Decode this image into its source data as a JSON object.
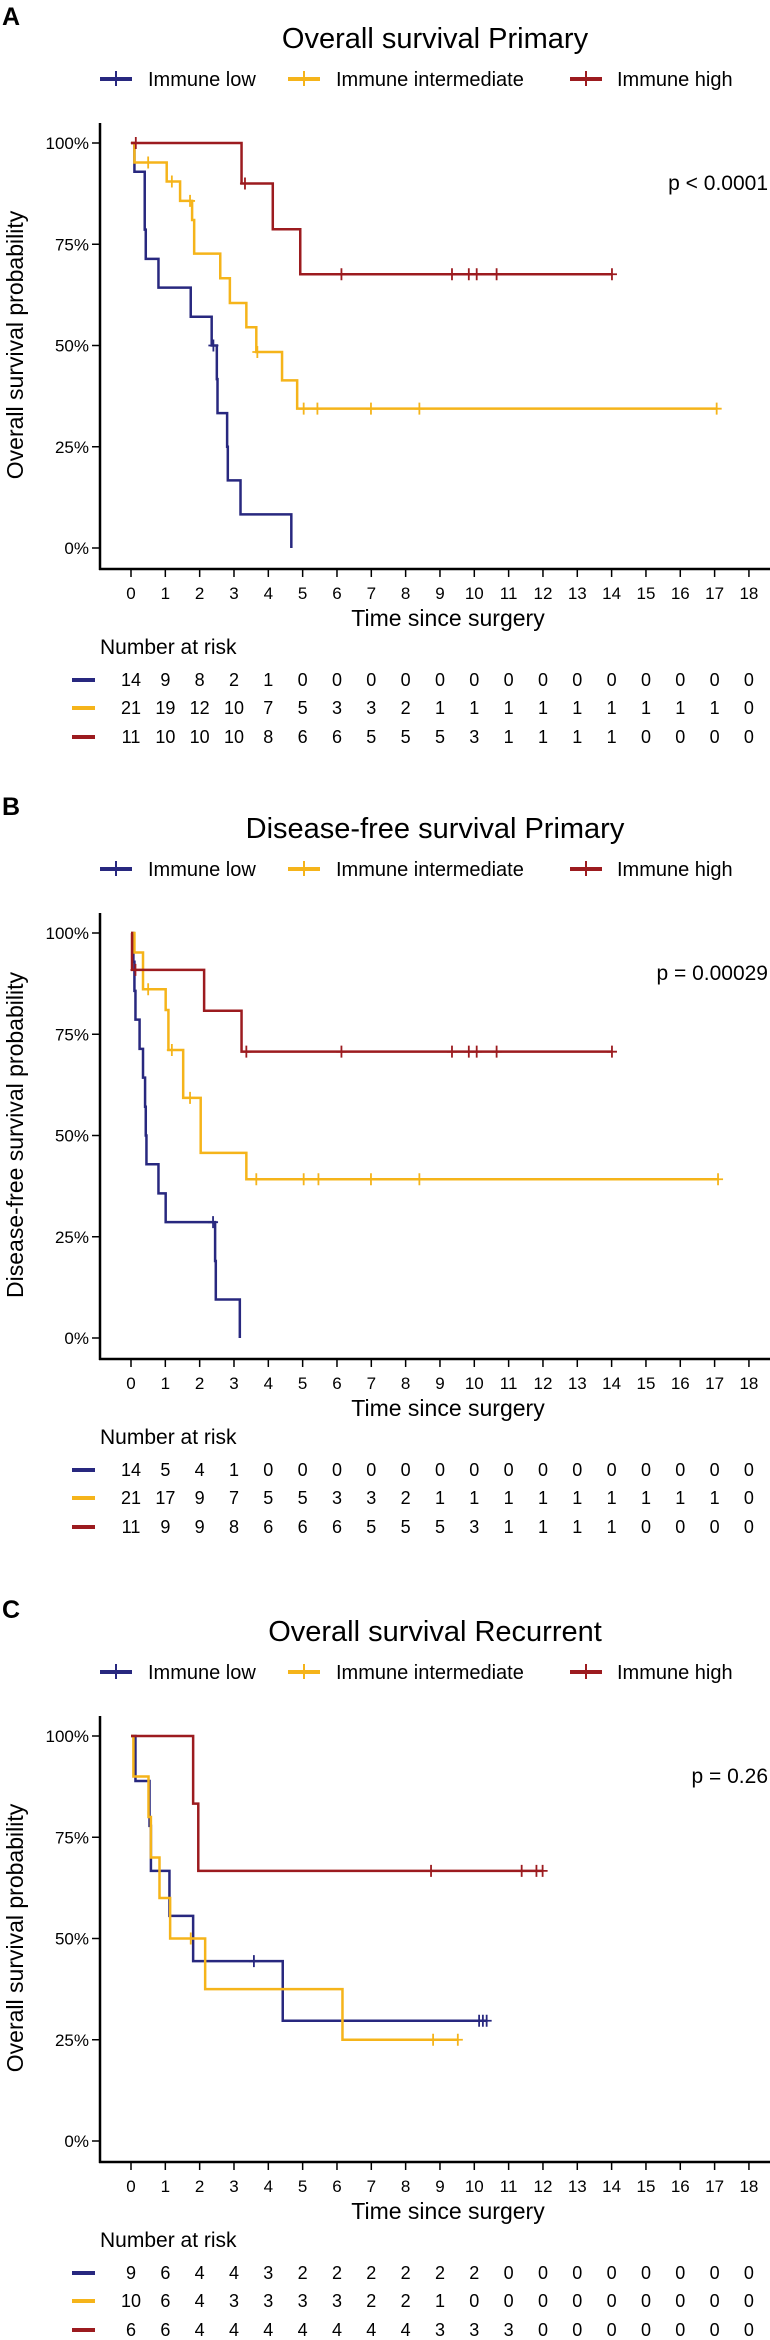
{
  "chart_data": [
    {
      "type": "line",
      "panel_label": "A",
      "title": "Overall survival Primary",
      "xlabel": "Time since surgery",
      "ylabel": "Overall survival probability",
      "xlim": [
        0,
        18
      ],
      "ylim": [
        0,
        1
      ],
      "xticks": [
        "0",
        "1",
        "2",
        "3",
        "4",
        "5",
        "6",
        "7",
        "8",
        "9",
        "10",
        "11",
        "12",
        "13",
        "14",
        "15",
        "16",
        "17",
        "18"
      ],
      "yticks": [
        {
          "value": 0,
          "label": "0%"
        },
        {
          "value": 0.25,
          "label": "25%"
        },
        {
          "value": 0.5,
          "label": "50%"
        },
        {
          "value": 0.75,
          "label": "75%"
        },
        {
          "value": 1,
          "label": "100%"
        }
      ],
      "legend": {
        "position": "top",
        "items": [
          "Immune low",
          "Immune intermediate",
          "Immune high"
        ]
      },
      "p_value": "p < 0.0001",
      "risk_title": "Number at risk",
      "series": [
        {
          "name": "Immune low",
          "color": "#28287f",
          "steps": [
            [
              0,
              1
            ],
            [
              0.1,
              0.929
            ],
            [
              0.4,
              0.786
            ],
            [
              0.43,
              0.714
            ],
            [
              0.8,
              0.643
            ],
            [
              1.74,
              0.571
            ],
            [
              2.35,
              0.5
            ],
            [
              2.5,
              0.417
            ],
            [
              2.52,
              0.333
            ],
            [
              2.8,
              0.25
            ],
            [
              2.82,
              0.167
            ],
            [
              3.19,
              0.083
            ],
            [
              4.67,
              0
            ]
          ],
          "end": 4.67,
          "censors": [
            [
              2.4,
              0.5
            ]
          ],
          "at_risk": [
            "14",
            "9",
            "8",
            "2",
            "1",
            "0",
            "0",
            "0",
            "0",
            "0",
            "0",
            "0",
            "0",
            "0",
            "0",
            "0",
            "0",
            "0",
            "0"
          ]
        },
        {
          "name": "Immune intermediate",
          "color": "#f5b41a",
          "steps": [
            [
              0,
              1
            ],
            [
              0.1,
              0.952
            ],
            [
              1.04,
              0.905
            ],
            [
              1.43,
              0.857
            ],
            [
              1.78,
              0.81
            ],
            [
              1.84,
              0.727
            ],
            [
              2.6,
              0.666
            ],
            [
              2.88,
              0.605
            ],
            [
              3.36,
              0.545
            ],
            [
              3.65,
              0.484
            ],
            [
              4.4,
              0.414
            ],
            [
              4.84,
              0.344
            ]
          ],
          "end": 17.06,
          "censors": [
            [
              0.5,
              0.952
            ],
            [
              1.19,
              0.905
            ],
            [
              1.72,
              0.857
            ],
            [
              3.68,
              0.484
            ],
            [
              5.03,
              0.344
            ],
            [
              5.43,
              0.344
            ],
            [
              6.99,
              0.344
            ],
            [
              8.4,
              0.344
            ],
            [
              17.06,
              0.344
            ]
          ],
          "at_risk": [
            "21",
            "19",
            "12",
            "10",
            "7",
            "5",
            "3",
            "3",
            "2",
            "1",
            "1",
            "1",
            "1",
            "1",
            "1",
            "1",
            "1",
            "1",
            "0"
          ]
        },
        {
          "name": "Immune high",
          "color": "#9c1b1f",
          "steps": [
            [
              0,
              1
            ],
            [
              3.22,
              0.9
            ],
            [
              4.13,
              0.787
            ],
            [
              4.93,
              0.676
            ]
          ],
          "end": 14.01,
          "censors": [
            [
              0.14,
              1
            ],
            [
              3.32,
              0.9
            ],
            [
              6.13,
              0.676
            ],
            [
              9.35,
              0.676
            ],
            [
              9.84,
              0.676
            ],
            [
              10.07,
              0.676
            ],
            [
              10.65,
              0.676
            ],
            [
              14.01,
              0.676
            ]
          ],
          "at_risk": [
            "11",
            "10",
            "10",
            "10",
            "8",
            "6",
            "6",
            "5",
            "5",
            "5",
            "3",
            "1",
            "1",
            "1",
            "1",
            "0",
            "0",
            "0",
            "0"
          ]
        }
      ]
    },
    {
      "type": "line",
      "panel_label": "B",
      "title": "Disease-free survival Primary",
      "xlabel": "Time since surgery",
      "ylabel": "Disease-free survival probability",
      "xlim": [
        0,
        18
      ],
      "ylim": [
        0,
        1
      ],
      "xticks": [
        "0",
        "1",
        "2",
        "3",
        "4",
        "5",
        "6",
        "7",
        "8",
        "9",
        "10",
        "11",
        "12",
        "13",
        "14",
        "15",
        "16",
        "17",
        "18"
      ],
      "yticks": [
        {
          "value": 0,
          "label": "0%"
        },
        {
          "value": 0.25,
          "label": "25%"
        },
        {
          "value": 0.5,
          "label": "50%"
        },
        {
          "value": 0.75,
          "label": "75%"
        },
        {
          "value": 1,
          "label": "100%"
        }
      ],
      "legend": {
        "position": "top",
        "items": [
          "Immune low",
          "Immune intermediate",
          "Immune high"
        ]
      },
      "p_value": "p = 0.00029",
      "risk_title": "Number at risk",
      "series": [
        {
          "name": "Immune low",
          "color": "#28287f",
          "steps": [
            [
              0,
              1
            ],
            [
              0.07,
              0.929
            ],
            [
              0.1,
              0.857
            ],
            [
              0.13,
              0.786
            ],
            [
              0.25,
              0.714
            ],
            [
              0.35,
              0.643
            ],
            [
              0.41,
              0.571
            ],
            [
              0.43,
              0.5
            ],
            [
              0.45,
              0.429
            ],
            [
              0.8,
              0.357
            ],
            [
              1.01,
              0.286
            ],
            [
              2.45,
              0.19
            ],
            [
              2.47,
              0.095
            ],
            [
              3.17,
              0
            ]
          ],
          "end": 3.17,
          "censors": [
            [
              2.39,
              0.286
            ]
          ],
          "at_risk": [
            "14",
            "5",
            "4",
            "1",
            "0",
            "0",
            "0",
            "0",
            "0",
            "0",
            "0",
            "0",
            "0",
            "0",
            "0",
            "0",
            "0",
            "0",
            "0"
          ]
        },
        {
          "name": "Immune intermediate",
          "color": "#f5b41a",
          "steps": [
            [
              0,
              1
            ],
            [
              0.1,
              0.952
            ],
            [
              0.35,
              0.861
            ],
            [
              1.01,
              0.81
            ],
            [
              1.09,
              0.711
            ],
            [
              1.52,
              0.593
            ],
            [
              2.03,
              0.457
            ],
            [
              3.36,
              0.392
            ]
          ],
          "end": 17.1,
          "censors": [
            [
              0.5,
              0.861
            ],
            [
              1.19,
              0.711
            ],
            [
              1.72,
              0.593
            ],
            [
              3.65,
              0.392
            ],
            [
              5.03,
              0.392
            ],
            [
              5.46,
              0.392
            ],
            [
              6.99,
              0.392
            ],
            [
              8.4,
              0.392
            ],
            [
              17.1,
              0.392
            ]
          ],
          "at_risk": [
            "21",
            "17",
            "9",
            "7",
            "5",
            "5",
            "3",
            "3",
            "2",
            "1",
            "1",
            "1",
            "1",
            "1",
            "1",
            "1",
            "1",
            "1",
            "0"
          ]
        },
        {
          "name": "Immune high",
          "color": "#9c1b1f",
          "steps": [
            [
              0,
              1
            ],
            [
              0.03,
              0.909
            ],
            [
              2.13,
              0.808
            ],
            [
              3.22,
              0.707
            ]
          ],
          "end": 14.01,
          "censors": [
            [
              0.13,
              0.909
            ],
            [
              3.36,
              0.707
            ],
            [
              6.13,
              0.707
            ],
            [
              9.35,
              0.707
            ],
            [
              9.84,
              0.707
            ],
            [
              10.07,
              0.707
            ],
            [
              10.65,
              0.707
            ],
            [
              14.01,
              0.707
            ]
          ],
          "at_risk": [
            "11",
            "9",
            "9",
            "8",
            "6",
            "6",
            "6",
            "5",
            "5",
            "5",
            "3",
            "1",
            "1",
            "1",
            "1",
            "0",
            "0",
            "0",
            "0"
          ]
        }
      ]
    },
    {
      "type": "line",
      "panel_label": "C",
      "title": "Overall survival Recurrent",
      "xlabel": "Time since surgery",
      "ylabel": "Overall survival probability",
      "xlim": [
        0,
        18
      ],
      "ylim": [
        0,
        1
      ],
      "xticks": [
        "0",
        "1",
        "2",
        "3",
        "4",
        "5",
        "6",
        "7",
        "8",
        "9",
        "10",
        "11",
        "12",
        "13",
        "14",
        "15",
        "16",
        "17",
        "18"
      ],
      "yticks": [
        {
          "value": 0,
          "label": "0%"
        },
        {
          "value": 0.25,
          "label": "25%"
        },
        {
          "value": 0.5,
          "label": "50%"
        },
        {
          "value": 0.75,
          "label": "75%"
        },
        {
          "value": 1,
          "label": "100%"
        }
      ],
      "legend": {
        "position": "top",
        "items": [
          "Immune low",
          "Immune intermediate",
          "Immune high"
        ]
      },
      "p_value": "p = 0.26",
      "risk_title": "Number at risk",
      "series": [
        {
          "name": "Immune low",
          "color": "#28287f",
          "steps": [
            [
              0,
              1
            ],
            [
              0.13,
              0.889
            ],
            [
              0.54,
              0.778
            ],
            [
              0.58,
              0.667
            ],
            [
              1.12,
              0.556
            ],
            [
              1.81,
              0.444
            ],
            [
              4.42,
              0.297
            ]
          ],
          "end": 10.36,
          "censors": [
            [
              3.58,
              0.444
            ],
            [
              10.14,
              0.297
            ],
            [
              10.25,
              0.297
            ],
            [
              10.36,
              0.297
            ]
          ],
          "at_risk": [
            "9",
            "6",
            "4",
            "4",
            "3",
            "2",
            "2",
            "2",
            "2",
            "2",
            "2",
            "0",
            "0",
            "0",
            "0",
            "0",
            "0",
            "0",
            "0"
          ]
        },
        {
          "name": "Immune intermediate",
          "color": "#f5b41a",
          "steps": [
            [
              0,
              1
            ],
            [
              0.07,
              0.9
            ],
            [
              0.51,
              0.8
            ],
            [
              0.58,
              0.7
            ],
            [
              0.83,
              0.6
            ],
            [
              1.14,
              0.5
            ],
            [
              2.16,
              0.375
            ],
            [
              6.16,
              0.25
            ]
          ],
          "end": 9.52,
          "censors": [
            [
              1.74,
              0.5
            ],
            [
              8.8,
              0.25
            ],
            [
              9.52,
              0.25
            ]
          ],
          "at_risk": [
            "10",
            "6",
            "4",
            "3",
            "3",
            "3",
            "3",
            "2",
            "2",
            "1",
            "0",
            "0",
            "0",
            "0",
            "0",
            "0",
            "0",
            "0",
            "0"
          ]
        },
        {
          "name": "Immune high",
          "color": "#9c1b1f",
          "steps": [
            [
              0,
              1
            ],
            [
              1.81,
              0.833
            ],
            [
              1.96,
              0.667
            ]
          ],
          "end": 11.99,
          "censors": [
            [
              8.74,
              0.667
            ],
            [
              11.38,
              0.667
            ],
            [
              11.81,
              0.667
            ],
            [
              11.99,
              0.667
            ]
          ],
          "at_risk": [
            "6",
            "6",
            "4",
            "4",
            "4",
            "4",
            "4",
            "4",
            "4",
            "3",
            "3",
            "3",
            "0",
            "0",
            "0",
            "0",
            "0",
            "0",
            "0"
          ]
        }
      ]
    }
  ]
}
